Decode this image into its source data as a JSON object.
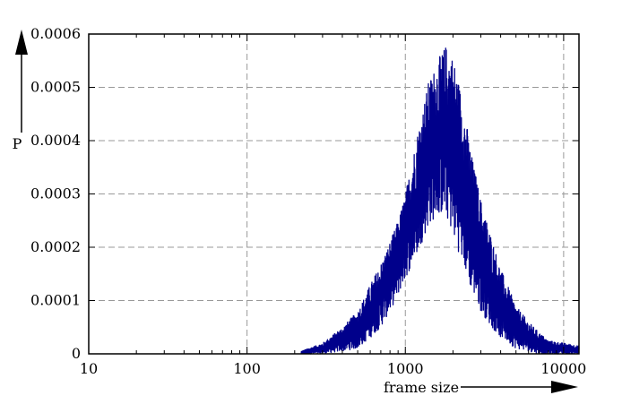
{
  "chart_data": {
    "type": "line",
    "title": "",
    "xlabel": "frame size",
    "ylabel": "P",
    "xscale": "log",
    "xlim": [
      10,
      12500
    ],
    "ylim": [
      0,
      0.0006
    ],
    "x_tick_labels": [
      "10",
      "100",
      "1000",
      "10000"
    ],
    "x_tick_values": [
      10,
      100,
      1000,
      10000
    ],
    "y_tick_labels": [
      "0",
      "0.0001",
      "0.0002",
      "0.0003",
      "0.0004",
      "0.0005",
      "0.0006"
    ],
    "y_tick_values": [
      0,
      0.0001,
      0.0002,
      0.0003,
      0.0004,
      0.0005,
      0.0006
    ],
    "grid": true,
    "legend": "none",
    "series": [
      {
        "color": "#00008b",
        "envelope": {
          "x": [
            220,
            300,
            400,
            500,
            600,
            700,
            800,
            900,
            1000,
            1200,
            1400,
            1600,
            1800,
            2000,
            2300,
            2600,
            3000,
            3500,
            4000,
            5000,
            6000,
            7000,
            8000,
            10000,
            12500
          ],
          "upper": [
            5e-06,
            2e-05,
            5e-05,
            8e-05,
            0.00013,
            0.00017,
            0.00021,
            0.00025,
            0.0003,
            0.00042,
            0.00051,
            0.00055,
            0.00058,
            0.00056,
            0.00048,
            0.00038,
            0.00029,
            0.00022,
            0.00016,
            9e-05,
            6e-05,
            4e-05,
            2.5e-05,
            2e-05,
            1.5e-05
          ],
          "lower": [
            0.0,
            0.0,
            5e-06,
            1e-05,
            3e-05,
            5e-05,
            8e-05,
            0.00011,
            0.00014,
            0.00019,
            0.00024,
            0.00026,
            0.00026,
            0.00022,
            0.00017,
            0.00012,
            8e-05,
            5e-05,
            3e-05,
            1e-05,
            5e-06,
            0.0,
            0.0,
            0.0,
            0.0
          ]
        }
      }
    ]
  }
}
